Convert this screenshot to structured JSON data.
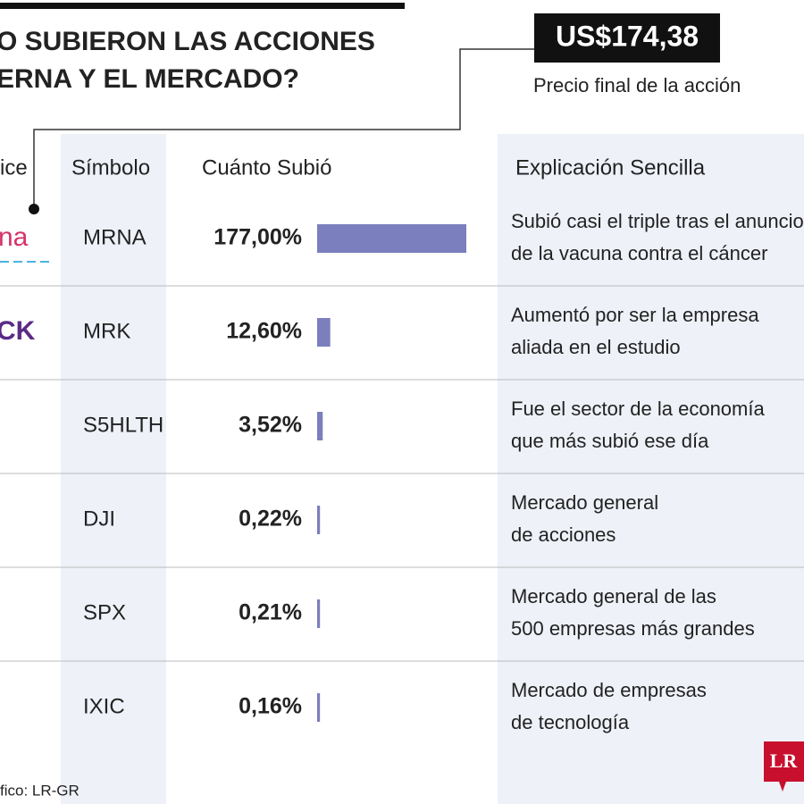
{
  "header": {
    "title_lines": [
      "O SUBIERON LAS ACCIONES",
      "ERNA Y EL MERCADO?"
    ],
    "price": "US$174,38",
    "price_caption": "Precio final de la acción"
  },
  "table": {
    "columns": [
      "ice",
      "Símbolo",
      "Cuánto Subió",
      "Explicación Sencilla"
    ],
    "bar_color": "#7b7fbd",
    "rows": [
      {
        "logo": "na",
        "symbol": "MRNA",
        "change": {
          "value": 177,
          "label": "177,00%"
        },
        "explanation": [
          "Subió casi el triple tras el anuncio",
          "de la vacuna contra el cáncer"
        ]
      },
      {
        "logo": "CK",
        "symbol": "MRK",
        "change": {
          "value": 12.6,
          "label": "12,60%"
        },
        "explanation": [
          "Aumentó por ser la empresa",
          "aliada en el estudio"
        ]
      },
      {
        "symbol": "S5HLTH",
        "change": {
          "value": 3.52,
          "label": "3,52%"
        },
        "explanation": [
          "Fue el sector de la economía",
          "que más subió ese día"
        ]
      },
      {
        "symbol": "DJI",
        "change": {
          "value": 0.22,
          "label": "0,22%"
        },
        "explanation": [
          "Mercado general",
          "de acciones"
        ]
      },
      {
        "symbol": "SPX",
        "change": {
          "value": 0.21,
          "label": "0,21%"
        },
        "explanation": [
          "Mercado general de las",
          "500 empresas más grandes"
        ]
      },
      {
        "symbol": "IXIC",
        "change": {
          "value": 0.16,
          "label": "0,16%"
        },
        "explanation": [
          "Mercado de empresas",
          "de tecnología"
        ]
      }
    ]
  },
  "footer": {
    "source": "fico: LR-GR",
    "brand": "LR"
  }
}
